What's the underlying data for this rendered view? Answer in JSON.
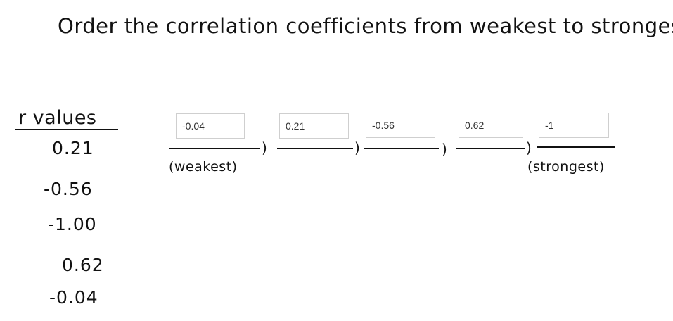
{
  "prompt": "Order the correlation coefficients from weakest to strongest.",
  "r_values": {
    "header": "r values",
    "items": [
      "0.21",
      "-0.56",
      "-1.00",
      "0.62",
      "-0.04"
    ]
  },
  "answers": [
    "-0.04",
    "0.21",
    "-0.56",
    "0.62",
    "-1"
  ],
  "labels": {
    "weakest": "(weakest)",
    "strongest": "(strongest)"
  },
  "separator": ")"
}
